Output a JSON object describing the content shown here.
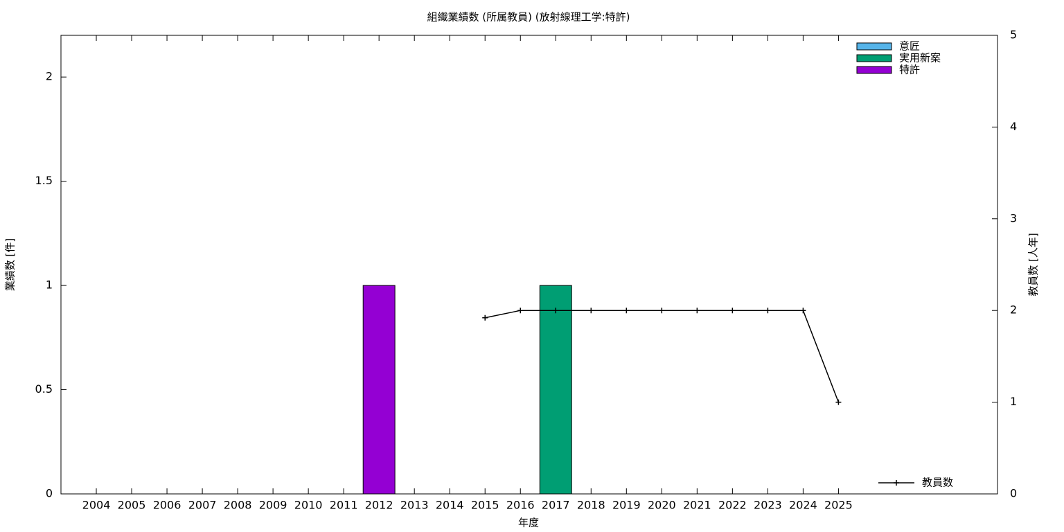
{
  "chart_data": {
    "type": "bar",
    "title": "組織業績数 (所属教員) (放射線理工学:特許)",
    "xlabel": "年度",
    "ylabel": "業績数 [件]",
    "y2label": "教員数 [人年]",
    "x": [
      2004,
      2005,
      2006,
      2007,
      2008,
      2009,
      2010,
      2011,
      2012,
      2013,
      2014,
      2015,
      2016,
      2017,
      2018,
      2019,
      2020,
      2021,
      2022,
      2023,
      2024,
      2025
    ],
    "xlim": [
      2003,
      2029.5
    ],
    "ylim": [
      0,
      2.2
    ],
    "yticks": [
      0,
      0.5,
      1,
      1.5,
      2
    ],
    "y2lim": [
      0,
      5
    ],
    "y2ticks": [
      0,
      1,
      2,
      3,
      4,
      5
    ],
    "stacked": true,
    "bar_legend": "top-right",
    "line_legend": "bottom-right",
    "series": [
      {
        "name": "意匠",
        "color": "#56b4e9",
        "values": [
          0,
          0,
          0,
          0,
          0,
          0,
          0,
          0,
          0,
          0,
          0,
          0,
          0,
          0,
          0,
          0,
          0,
          0,
          0,
          0,
          0,
          0
        ]
      },
      {
        "name": "実用新案",
        "color": "#009e73",
        "values": [
          0,
          0,
          0,
          0,
          0,
          0,
          0,
          0,
          0,
          0,
          0,
          0,
          0,
          1,
          0,
          0,
          0,
          0,
          0,
          0,
          0,
          0
        ]
      },
      {
        "name": "特許",
        "color": "#9400d3",
        "values": [
          0,
          0,
          0,
          0,
          0,
          0,
          0,
          0,
          1,
          0,
          0,
          0,
          0,
          0,
          0,
          0,
          0,
          0,
          0,
          0,
          0,
          0
        ]
      },
      {
        "name": "教員数",
        "type": "line",
        "axis": "y2",
        "color": "#000000",
        "values": [
          null,
          null,
          null,
          null,
          null,
          null,
          null,
          null,
          null,
          null,
          null,
          1.92,
          2,
          2,
          2,
          2,
          2,
          2,
          2,
          2,
          2,
          1
        ]
      }
    ]
  }
}
